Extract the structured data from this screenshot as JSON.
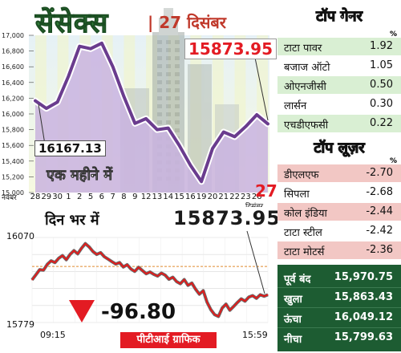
{
  "header": {
    "title": "सेंसेक्स",
    "date": "| 27 दिसंबर"
  },
  "monthly": {
    "tag": "एक महीने में",
    "latest": "15873.95",
    "first": "16167.13",
    "x_month": "नवंबर",
    "x_month2": "दिसंबर",
    "highlight_day": "27"
  },
  "intraday": {
    "tag": "दिन भर में",
    "latest": "15873.95",
    "y_top": "16070",
    "y_bottom": "15779",
    "t_start": "09:15",
    "t_end": "15:59",
    "change": "-96.80"
  },
  "credit": "पीटीआई ग्राफिक",
  "gainers": {
    "title": "टॉप गेनर",
    "pct": "%",
    "items": [
      {
        "name": "टाटा पावर",
        "value": "1.92"
      },
      {
        "name": "बजाज ऑटो",
        "value": "1.05"
      },
      {
        "name": "ओएनजीसी",
        "value": "0.50"
      },
      {
        "name": "लार्सन",
        "value": "0.30"
      },
      {
        "name": "एचडीएफसी",
        "value": "0.22"
      }
    ]
  },
  "losers": {
    "title": "टॉप लूज़र",
    "pct": "%",
    "items": [
      {
        "name": "डीएलएफ",
        "value": "-2.70"
      },
      {
        "name": "सिपला",
        "value": "-2.68"
      },
      {
        "name": "कोल इंडिया",
        "value": "-2.44"
      },
      {
        "name": "टाटा स्टील",
        "value": "-2.42"
      },
      {
        "name": "टाटा मोटर्स",
        "value": "-2.36"
      }
    ]
  },
  "stats": [
    {
      "label": "पूर्व बंद",
      "value": "15,970.75"
    },
    {
      "label": "खुला",
      "value": "15,863.43"
    },
    {
      "label": "ऊंचा",
      "value": "16,049.12"
    },
    {
      "label": "नीचा",
      "value": "15,799.63"
    }
  ],
  "colors": {
    "line": "#6a3c8e",
    "area": "#cdb7e3",
    "intraday": "#e21b1b",
    "grid_alt": "#eef3c8",
    "row_green": "#d9efd3",
    "row_red": "#f2c7c4",
    "header_green": "#2e7d3e",
    "stats_bg": "#1d5c32",
    "accent_red": "#e31b23"
  },
  "chart_data": [
    {
      "type": "line",
      "title": "एक महीने में",
      "x": [
        "28",
        "29",
        "30",
        "1",
        "2",
        "5",
        "6",
        "7",
        "8",
        "9",
        "12",
        "13",
        "14",
        "15",
        "16",
        "19",
        "20",
        "21",
        "22",
        "23",
        "26",
        "27"
      ],
      "values": [
        16167.13,
        16070,
        16150,
        16480,
        16860,
        16830,
        16900,
        16600,
        16220,
        15880,
        15940,
        15800,
        15820,
        15600,
        15350,
        15140,
        15560,
        15770,
        15710,
        15840,
        15990,
        15873.95
      ],
      "ylim": [
        15000,
        17000
      ],
      "yticks": [
        15000,
        15200,
        15400,
        15600,
        15800,
        16000,
        16200,
        16400,
        16600,
        16800,
        17000
      ],
      "annotations": [
        "16167.13",
        "15873.95"
      ]
    },
    {
      "type": "line",
      "title": "दिन भर में",
      "x_start": "09:15",
      "x_end": "15:59",
      "ylim": [
        15779,
        16070
      ],
      "reference": 15970.75,
      "values": [
        15925,
        15942,
        15960,
        15958,
        15978,
        15990,
        15984,
        15999,
        16008,
        15994,
        16012,
        16025,
        16014,
        16033,
        16049,
        16038,
        16022,
        16012,
        16018,
        16004,
        15996,
        15987,
        15979,
        15984,
        15969,
        15977,
        15962,
        15954,
        15968,
        15957,
        15946,
        15952,
        15944,
        15938,
        15948,
        15941,
        15927,
        15934,
        15919,
        15912,
        15926,
        15906,
        15914,
        15893,
        15876,
        15888,
        15849,
        15823,
        15806,
        15800,
        15829,
        15842,
        15821,
        15834,
        15848,
        15860,
        15852,
        15866,
        15871,
        15862,
        15874,
        15869,
        15873.95
      ]
    }
  ]
}
